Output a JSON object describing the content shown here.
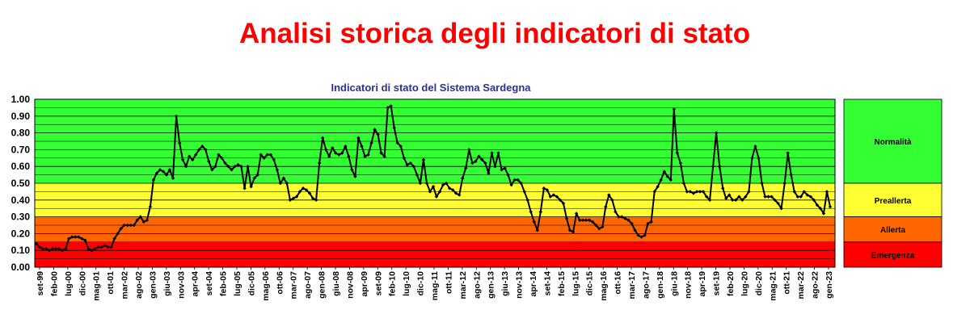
{
  "header": {
    "title": "Analisi storica degli indicatori di stato"
  },
  "colors": {
    "normal": "#33ff33",
    "prealert": "#ffff33",
    "alert": "#ff6600",
    "emergency": "#ff0000",
    "title": "#ff0000",
    "chart_title": "#2e3192",
    "line": "#000000"
  },
  "chart_data": {
    "type": "line",
    "title": "Indicatori di stato del Sistema Sardegna",
    "xlabel": "",
    "ylabel": "",
    "ylim": [
      0,
      1
    ],
    "grid": true,
    "yticks": [
      "0.00",
      "0.10",
      "0.20",
      "0.30",
      "0.40",
      "0.50",
      "0.60",
      "0.70",
      "0.80",
      "0.90",
      "1.00"
    ],
    "zones": [
      {
        "name": "Normalità",
        "from": 0.5,
        "to": 1.0,
        "color": "#33ff33"
      },
      {
        "name": "Preallerta",
        "from": 0.3,
        "to": 0.5,
        "color": "#ffff33"
      },
      {
        "name": "Allerta",
        "from": 0.15,
        "to": 0.3,
        "color": "#ff6600"
      },
      {
        "name": "Emergenza",
        "from": 0.0,
        "to": 0.15,
        "color": "#ff0000"
      }
    ],
    "x_tick_labels": [
      "set-99",
      "feb-00",
      "lug-00",
      "dic-00",
      "mag-01",
      "ott-01",
      "mar-02",
      "ago-02",
      "gen-03",
      "giu-03",
      "nov-03",
      "apr-04",
      "set-04",
      "feb-05",
      "lug-05",
      "dic-05",
      "mag-06",
      "ott-06",
      "mar-07",
      "ago-07",
      "gen-08",
      "giu-08",
      "nov-08",
      "apr-09",
      "set-09",
      "feb-10",
      "lug-10",
      "dic-10",
      "mag-11",
      "ott-11",
      "mar-12",
      "ago-12",
      "gen-13",
      "giu-13",
      "nov-13",
      "apr-14",
      "set-14",
      "feb-15",
      "lug-15",
      "dic-15",
      "mag-16",
      "ott-16",
      "mar-17",
      "ago-17",
      "gen-18",
      "giu-18",
      "nov-18",
      "apr-19",
      "set-19",
      "feb-20",
      "lug-20",
      "dic-20",
      "mag-21",
      "ott-21",
      "mar-22",
      "ago-22",
      "gen-23"
    ],
    "series": [
      {
        "values": [
          0.14,
          0.12,
          0.11,
          0.11,
          0.1,
          0.11,
          0.11,
          0.11,
          0.1,
          0.11,
          0.17,
          0.18,
          0.18,
          0.18,
          0.17,
          0.16,
          0.11,
          0.1,
          0.11,
          0.12,
          0.12,
          0.13,
          0.12,
          0.12,
          0.17,
          0.2,
          0.23,
          0.25,
          0.25,
          0.25,
          0.25,
          0.28,
          0.3,
          0.27,
          0.28,
          0.36,
          0.52,
          0.56,
          0.58,
          0.57,
          0.55,
          0.58,
          0.53,
          0.9,
          0.74,
          0.64,
          0.6,
          0.66,
          0.64,
          0.67,
          0.7,
          0.72,
          0.7,
          0.63,
          0.58,
          0.6,
          0.67,
          0.65,
          0.62,
          0.6,
          0.58,
          0.6,
          0.61,
          0.6,
          0.47,
          0.6,
          0.48,
          0.53,
          0.55,
          0.67,
          0.65,
          0.67,
          0.67,
          0.64,
          0.58,
          0.5,
          0.53,
          0.5,
          0.4,
          0.41,
          0.42,
          0.45,
          0.47,
          0.46,
          0.44,
          0.41,
          0.4,
          0.62,
          0.77,
          0.7,
          0.66,
          0.71,
          0.68,
          0.67,
          0.68,
          0.72,
          0.66,
          0.58,
          0.54,
          0.77,
          0.72,
          0.66,
          0.67,
          0.74,
          0.82,
          0.79,
          0.68,
          0.66,
          0.95,
          0.96,
          0.83,
          0.74,
          0.72,
          0.65,
          0.61,
          0.62,
          0.6,
          0.55,
          0.5,
          0.64,
          0.5,
          0.45,
          0.48,
          0.42,
          0.45,
          0.49,
          0.5,
          0.47,
          0.46,
          0.44,
          0.43,
          0.53,
          0.59,
          0.7,
          0.62,
          0.63,
          0.66,
          0.64,
          0.62,
          0.56,
          0.68,
          0.6,
          0.68,
          0.58,
          0.59,
          0.55,
          0.49,
          0.52,
          0.52,
          0.5,
          0.45,
          0.4,
          0.33,
          0.27,
          0.22,
          0.33,
          0.47,
          0.46,
          0.42,
          0.43,
          0.42,
          0.4,
          0.38,
          0.29,
          0.22,
          0.21,
          0.32,
          0.28,
          0.28,
          0.28,
          0.28,
          0.27,
          0.25,
          0.23,
          0.24,
          0.36,
          0.43,
          0.4,
          0.33,
          0.3,
          0.3,
          0.29,
          0.28,
          0.26,
          0.22,
          0.19,
          0.18,
          0.19,
          0.26,
          0.27,
          0.45,
          0.48,
          0.52,
          0.57,
          0.54,
          0.52,
          0.94,
          0.68,
          0.62,
          0.5,
          0.45,
          0.45,
          0.44,
          0.45,
          0.45,
          0.45,
          0.42,
          0.4,
          0.6,
          0.8,
          0.6,
          0.47,
          0.41,
          0.43,
          0.4,
          0.4,
          0.42,
          0.4,
          0.42,
          0.45,
          0.65,
          0.72,
          0.65,
          0.5,
          0.42,
          0.42,
          0.42,
          0.4,
          0.38,
          0.35,
          0.5,
          0.68,
          0.55,
          0.45,
          0.42,
          0.42,
          0.45,
          0.43,
          0.42,
          0.4,
          0.37,
          0.35,
          0.32,
          0.45,
          0.36
        ]
      }
    ]
  }
}
